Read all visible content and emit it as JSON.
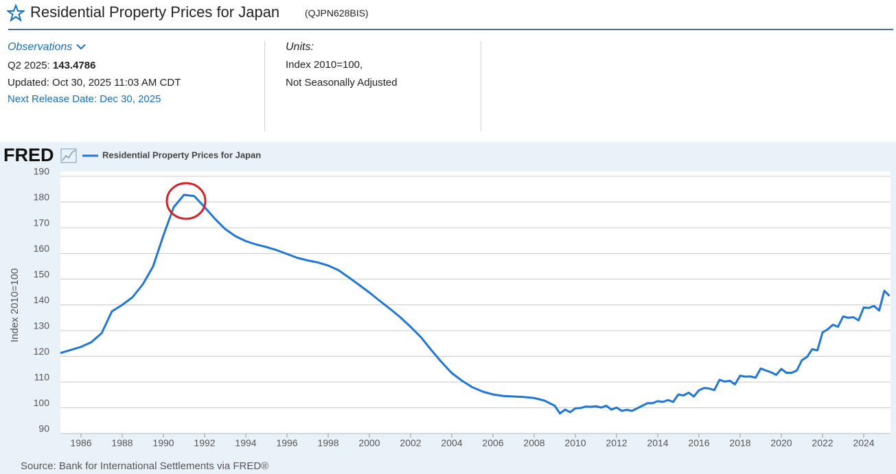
{
  "header": {
    "title": "Residential Property Prices for Japan",
    "series_id": "(QJPN628BIS)"
  },
  "observations": {
    "label": "Observations",
    "period": "Q2 2025:",
    "value": "143.4786",
    "updated": "Updated: Oct 30, 2025 11:03 AM CDT",
    "next_release": "Next Release Date: Dec 30, 2025"
  },
  "units": {
    "label": "Units:",
    "line1": "Index 2010=100,",
    "line2": "Not Seasonally Adjusted"
  },
  "logo": "FRED",
  "chart_data": {
    "type": "line",
    "ylabel": "Index 2010=100",
    "source": "Source: Bank for International Settlements via FRED®",
    "x": [
      1985,
      1986,
      1986.5,
      1987,
      1987.5,
      1988,
      1988.5,
      1989,
      1989.5,
      1990,
      1990.5,
      1991,
      1991.5,
      1992,
      1992.5,
      1993,
      1993.5,
      1994,
      1994.5,
      1995,
      1995.5,
      1996,
      1996.5,
      1997,
      1997.5,
      1998,
      1998.5,
      1999,
      1999.5,
      2000,
      2000.5,
      2001,
      2001.5,
      2002,
      2002.5,
      2003,
      2003.5,
      2004,
      2004.5,
      2005,
      2005.5,
      2006,
      2006.5,
      2007,
      2007.5,
      2008,
      2008.5,
      2009,
      2009.25,
      2009.5,
      2009.75,
      2010,
      2010.25,
      2010.5,
      2010.75,
      2011,
      2011.25,
      2011.5,
      2011.75,
      2012,
      2012.25,
      2012.5,
      2012.75,
      2013,
      2013.25,
      2013.5,
      2013.75,
      2014,
      2014.25,
      2014.5,
      2014.75,
      2015,
      2015.25,
      2015.5,
      2015.75,
      2016,
      2016.25,
      2016.5,
      2016.75,
      2017,
      2017.25,
      2017.5,
      2017.75,
      2018,
      2018.25,
      2018.5,
      2018.75,
      2019,
      2019.25,
      2019.5,
      2019.75,
      2020,
      2020.25,
      2020.5,
      2020.75,
      2021,
      2021.25,
      2021.5,
      2021.75,
      2022,
      2022.25,
      2022.5,
      2022.75,
      2023,
      2023.25,
      2023.5,
      2023.75,
      2024,
      2024.25,
      2024.5,
      2024.75,
      2025,
      2025.25
    ],
    "series": [
      {
        "name": "Residential Property Prices for Japan",
        "color": "#2176d2",
        "values": [
          121.3,
          123.7,
          125.5,
          129,
          137.5,
          140,
          143,
          148,
          155,
          167,
          178,
          182.8,
          182.3,
          178,
          173.5,
          169.5,
          166.7,
          164.8,
          163.5,
          162.5,
          161.3,
          159.8,
          158.3,
          157.3,
          156.5,
          155.3,
          153.5,
          150.7,
          147.8,
          144.8,
          141.6,
          138.5,
          135.2,
          131.5,
          127.5,
          122.5,
          117.8,
          113.5,
          110.5,
          108,
          106.3,
          105.2,
          104.6,
          104.4,
          104.2,
          103.8,
          102.8,
          100.8,
          97.8,
          99.3,
          98.3,
          99.8,
          99.9,
          100.5,
          100.4,
          100.6,
          100.1,
          100.8,
          99.3,
          100.1,
          98.8,
          99.2,
          98.8,
          99.8,
          100.8,
          101.8,
          101.8,
          102.6,
          102.3,
          103.0,
          102.3,
          105.2,
          104.8,
          105.9,
          104.4,
          106.8,
          107.7,
          107.5,
          106.9,
          110.9,
          110.2,
          110.5,
          109.1,
          112.5,
          112.1,
          112.2,
          111.7,
          115.3,
          114.5,
          113.8,
          112.8,
          115.1,
          113.6,
          113.6,
          114.5,
          118.5,
          119.8,
          122.8,
          122.3,
          129.3,
          130.5,
          132.3,
          131.5,
          135.5,
          135.0,
          135.2,
          134.0,
          139.0,
          138.8,
          139.6,
          137.8,
          145.5,
          143.4786
        ]
      }
    ],
    "xlim": [
      1985,
      2025.3
    ],
    "xticks": [
      1986,
      1988,
      1990,
      1992,
      1994,
      1996,
      1998,
      2000,
      2002,
      2004,
      2006,
      2008,
      2010,
      2012,
      2014,
      2016,
      2018,
      2020,
      2022,
      2024
    ],
    "ylim": [
      90,
      190
    ],
    "yticks": [
      90,
      100,
      110,
      120,
      130,
      140,
      150,
      160,
      170,
      180,
      190
    ],
    "grid": true
  }
}
